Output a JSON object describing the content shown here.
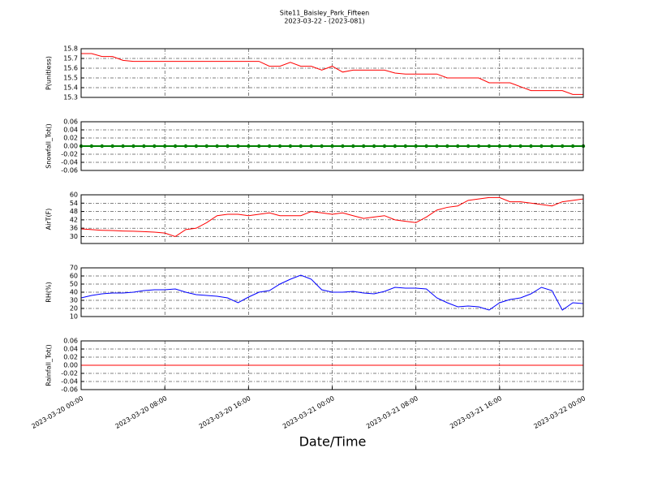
{
  "title": "Site11_Baisley_Park_Fifteen",
  "subtitle": "2023-03-22 - (2023-081)",
  "x_axis": {
    "xlabel": "Date/Time",
    "xlim": [
      "2023-03-20 00:00",
      "2023-03-22 00:00"
    ],
    "xticks": [
      "2023-03-20 00:00",
      "2023-03-20 08:00",
      "2023-03-20 16:00",
      "2023-03-21 00:00",
      "2023-03-21 08:00",
      "2023-03-21 16:00",
      "2023-03-22 00:00"
    ],
    "x": [
      "2023-03-20 00:00",
      "2023-03-20 01:00",
      "2023-03-20 02:00",
      "2023-03-20 03:00",
      "2023-03-20 04:00",
      "2023-03-20 05:00",
      "2023-03-20 06:00",
      "2023-03-20 07:00",
      "2023-03-20 08:00",
      "2023-03-20 09:00",
      "2023-03-20 10:00",
      "2023-03-20 11:00",
      "2023-03-20 12:00",
      "2023-03-20 13:00",
      "2023-03-20 14:00",
      "2023-03-20 15:00",
      "2023-03-20 16:00",
      "2023-03-20 17:00",
      "2023-03-20 18:00",
      "2023-03-20 19:00",
      "2023-03-20 20:00",
      "2023-03-20 21:00",
      "2023-03-20 22:00",
      "2023-03-20 23:00",
      "2023-03-21 00:00",
      "2023-03-21 01:00",
      "2023-03-21 02:00",
      "2023-03-21 03:00",
      "2023-03-21 04:00",
      "2023-03-21 05:00",
      "2023-03-21 06:00",
      "2023-03-21 07:00",
      "2023-03-21 08:00",
      "2023-03-21 09:00",
      "2023-03-21 10:00",
      "2023-03-21 11:00",
      "2023-03-21 12:00",
      "2023-03-21 13:00",
      "2023-03-21 14:00",
      "2023-03-21 15:00",
      "2023-03-21 16:00",
      "2023-03-21 17:00",
      "2023-03-21 18:00",
      "2023-03-21 19:00",
      "2023-03-21 20:00",
      "2023-03-21 21:00",
      "2023-03-21 22:00",
      "2023-03-21 23:00",
      "2023-03-22 00:00"
    ]
  },
  "chart_data": [
    {
      "type": "line",
      "ylabel": "P(unitless)",
      "ylim": [
        15.3,
        15.8
      ],
      "yticks": [
        15.3,
        15.4,
        15.5,
        15.6,
        15.7,
        15.8
      ],
      "grid": true,
      "series": [
        {
          "color": "#ff0000",
          "values": [
            15.75,
            15.75,
            15.72,
            15.72,
            15.68,
            15.67,
            15.67,
            15.67,
            15.67,
            15.67,
            15.67,
            15.67,
            15.67,
            15.67,
            15.67,
            15.67,
            15.67,
            15.67,
            15.62,
            15.62,
            15.66,
            15.62,
            15.62,
            15.58,
            15.62,
            15.56,
            15.58,
            15.58,
            15.58,
            15.58,
            15.55,
            15.54,
            15.54,
            15.54,
            15.54,
            15.5,
            15.5,
            15.5,
            15.5,
            15.45,
            15.45,
            15.45,
            15.41,
            15.37,
            15.37,
            15.37,
            15.37,
            15.33,
            15.33
          ]
        }
      ]
    },
    {
      "type": "line",
      "ylabel": "Snowfall_Tot()",
      "ylim": [
        -0.06,
        0.06
      ],
      "yticks": [
        -0.06,
        -0.04,
        -0.02,
        {
          "value": 0,
          "label": "0.00"
        },
        0.02,
        0.04,
        0.06
      ],
      "grid": true,
      "series": [
        {
          "color": "#008000",
          "marker": true,
          "values": [
            0,
            0,
            0,
            0,
            0,
            0,
            0,
            0,
            0,
            0,
            0,
            0,
            0,
            0,
            0,
            0,
            0,
            0,
            0,
            0,
            0,
            0,
            0,
            0,
            0,
            0,
            0,
            0,
            0,
            0,
            0,
            0,
            0,
            0,
            0,
            0,
            0,
            0,
            0,
            0,
            0,
            0,
            0,
            0,
            0,
            0,
            0,
            0,
            0
          ]
        }
      ]
    },
    {
      "type": "line",
      "ylabel": "AirT(F)",
      "ylim": [
        25,
        60
      ],
      "yticks": [
        30,
        36,
        42,
        48,
        54,
        60
      ],
      "grid": true,
      "series": [
        {
          "color": "#ff0000",
          "values": [
            35.5,
            35,
            34.5,
            34.3,
            34,
            33.8,
            33.5,
            33.2,
            32.5,
            30,
            35,
            36,
            40,
            45,
            46,
            46,
            45,
            46,
            47,
            45,
            45,
            45,
            48,
            47,
            46,
            47,
            45,
            43,
            44,
            45,
            42,
            41,
            40,
            44,
            49,
            51,
            52,
            56,
            57,
            58,
            58,
            55,
            55,
            54,
            53,
            52,
            55,
            56,
            57
          ]
        }
      ]
    },
    {
      "type": "line",
      "ylabel": "RH(%)",
      "ylim": [
        10,
        70
      ],
      "yticks": [
        10,
        20,
        30,
        40,
        50,
        60,
        70
      ],
      "grid": true,
      "series": [
        {
          "color": "#0000ff",
          "values": [
            33,
            36,
            38,
            39,
            39,
            40,
            42,
            43,
            43,
            44,
            40,
            37,
            36,
            35,
            33,
            27,
            34,
            40,
            42,
            50,
            56,
            61,
            56,
            43,
            40,
            40,
            41,
            39,
            38,
            41,
            46,
            45,
            45,
            44,
            33,
            27,
            22,
            23,
            22,
            18,
            27,
            31,
            33,
            38,
            46,
            42,
            18,
            27,
            26
          ]
        }
      ]
    },
    {
      "type": "line",
      "ylabel": "Rainfall_Tot()",
      "ylim": [
        -0.06,
        0.06
      ],
      "yticks": [
        -0.06,
        -0.04,
        -0.02,
        {
          "value": 0,
          "label": "0.00"
        },
        0.02,
        0.04,
        0.06
      ],
      "grid": true,
      "series": [
        {
          "color": "#ff0000",
          "values": [
            0,
            0,
            0,
            0,
            0,
            0,
            0,
            0,
            0,
            0,
            0,
            0,
            0,
            0,
            0,
            0,
            0,
            0,
            0,
            0,
            0,
            0,
            0,
            0,
            0,
            0,
            0,
            0,
            0,
            0,
            0,
            0,
            0,
            0,
            0,
            0,
            0,
            0,
            0,
            0,
            0,
            0,
            0,
            0,
            0,
            0,
            0,
            0,
            0
          ]
        }
      ]
    }
  ]
}
